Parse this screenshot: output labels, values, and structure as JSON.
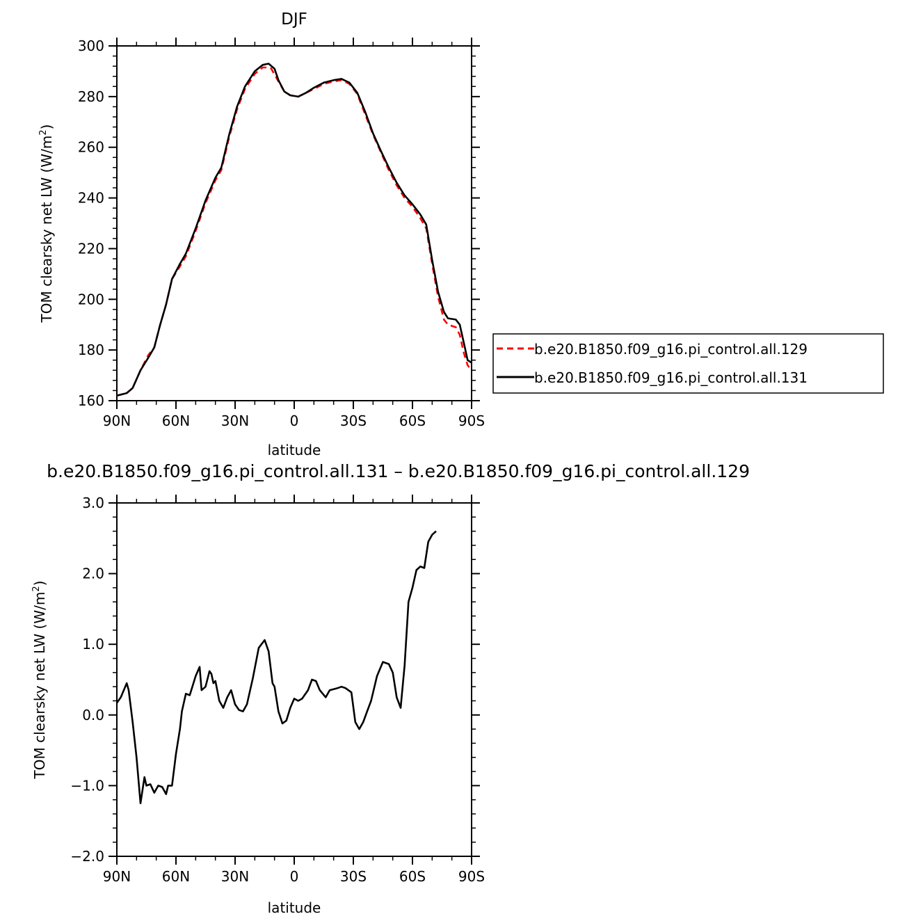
{
  "chart_data": [
    {
      "type": "line",
      "title": "DJF",
      "xlabel": "latitude",
      "ylabel": "TOM clearsky net LW (W/m",
      "ylabel_sup": "2",
      "ylabel_close": ")",
      "xlim": [
        90,
        -90
      ],
      "ylim": [
        160,
        300
      ],
      "x_ticks": [
        90,
        60,
        30,
        0,
        -30,
        -60,
        -90
      ],
      "x_tick_labels": [
        "90N",
        "60N",
        "30N",
        "0",
        "30S",
        "60S",
        "90S"
      ],
      "y_ticks": [
        160,
        180,
        200,
        220,
        240,
        260,
        280,
        300
      ],
      "y_tick_labels": [
        "160",
        "180",
        "200",
        "220",
        "240",
        "260",
        "280",
        "300"
      ],
      "legend": "right",
      "series": [
        {
          "name": "b.e20.B1850.f09_g16.pi_control.all.129",
          "color": "#ff0000",
          "dash": "dashed",
          "points": [
            [
              90,
              162
            ],
            [
              85,
              163
            ],
            [
              82,
              165
            ],
            [
              78,
              172
            ],
            [
              74,
              178
            ],
            [
              71,
              181
            ],
            [
              68,
              190
            ],
            [
              65,
              198
            ],
            [
              62,
              208
            ],
            [
              58,
              213
            ],
            [
              55,
              217
            ],
            [
              50,
              227
            ],
            [
              45,
              238
            ],
            [
              40,
              247
            ],
            [
              37,
              251
            ],
            [
              33,
              264
            ],
            [
              29,
              275
            ],
            [
              25,
              283
            ],
            [
              20,
              289
            ],
            [
              16,
              291.5
            ],
            [
              12,
              291.5
            ],
            [
              8,
              286
            ],
            [
              5,
              282
            ],
            [
              2,
              280.5
            ],
            [
              -2,
              280
            ],
            [
              -6,
              281.5
            ],
            [
              -10,
              283
            ],
            [
              -15,
              285
            ],
            [
              -20,
              286
            ],
            [
              -24,
              286.5
            ],
            [
              -28,
              285
            ],
            [
              -32,
              281
            ],
            [
              -36,
              273
            ],
            [
              -40,
              265
            ],
            [
              -44,
              258
            ],
            [
              -48,
              251
            ],
            [
              -52,
              245
            ],
            [
              -56,
              240
            ],
            [
              -60,
              236.5
            ],
            [
              -64,
              232
            ],
            [
              -67,
              228
            ],
            [
              -70,
              214
            ],
            [
              -73,
              201
            ],
            [
              -76,
              192
            ],
            [
              -78,
              190
            ],
            [
              -82,
              189
            ],
            [
              -84,
              186
            ],
            [
              -86,
              179
            ],
            [
              -88,
              174
            ],
            [
              -90,
              172
            ]
          ]
        },
        {
          "name": "b.e20.B1850.f09_g16.pi_control.all.131",
          "color": "#000000",
          "dash": "solid",
          "points": [
            [
              90,
              162
            ],
            [
              85,
              163
            ],
            [
              82,
              165
            ],
            [
              78,
              172
            ],
            [
              74,
              177
            ],
            [
              71,
              181
            ],
            [
              68,
              190
            ],
            [
              65,
              198
            ],
            [
              62,
              208
            ],
            [
              58,
              214
            ],
            [
              55,
              218
            ],
            [
              50,
              228
            ],
            [
              45,
              239
            ],
            [
              40,
              248
            ],
            [
              37,
              252
            ],
            [
              33,
              265
            ],
            [
              29,
              276
            ],
            [
              25,
              284
            ],
            [
              20,
              290
            ],
            [
              16,
              292.5
            ],
            [
              13,
              293
            ],
            [
              10,
              291
            ],
            [
              8,
              286.5
            ],
            [
              5,
              282
            ],
            [
              2,
              280.5
            ],
            [
              -2,
              280
            ],
            [
              -6,
              281.5
            ],
            [
              -10,
              283.5
            ],
            [
              -15,
              285.5
            ],
            [
              -20,
              286.5
            ],
            [
              -24,
              287
            ],
            [
              -28,
              285.5
            ],
            [
              -32,
              281.5
            ],
            [
              -36,
              274
            ],
            [
              -40,
              265.5
            ],
            [
              -44,
              258.5
            ],
            [
              -48,
              252
            ],
            [
              -52,
              246
            ],
            [
              -56,
              241
            ],
            [
              -60,
              237.5
            ],
            [
              -64,
              233.5
            ],
            [
              -67,
              229.5
            ],
            [
              -70,
              215.5
            ],
            [
              -73,
              203
            ],
            [
              -76,
              195
            ],
            [
              -78,
              192.5
            ],
            [
              -82,
              192
            ],
            [
              -84,
              190
            ],
            [
              -86,
              183
            ],
            [
              -88,
              176
            ],
            [
              -90,
              175
            ]
          ]
        }
      ]
    },
    {
      "type": "line",
      "title": "b.e20.B1850.f09_g16.pi_control.all.131 – b.e20.B1850.f09_g16.pi_control.all.129",
      "xlabel": "latitude",
      "ylabel": "TOM clearsky net LW (W/m",
      "ylabel_sup": "2",
      "ylabel_close": ")",
      "xlim": [
        90,
        -90
      ],
      "ylim": [
        -2.0,
        3.0
      ],
      "x_ticks": [
        90,
        60,
        30,
        0,
        -30,
        -60,
        -90
      ],
      "x_tick_labels": [
        "90N",
        "60N",
        "30N",
        "0",
        "30S",
        "60S",
        "90S"
      ],
      "y_ticks": [
        -2.0,
        -1.0,
        0.0,
        1.0,
        2.0,
        3.0
      ],
      "y_tick_labels": [
        "−2.0",
        "−1.0",
        "0.0",
        "1.0",
        "2.0",
        "3.0"
      ],
      "series": [
        {
          "color": "#000000",
          "dash": "solid",
          "points": [
            [
              90,
              0.17
            ],
            [
              88,
              0.25
            ],
            [
              85,
              0.45
            ],
            [
              84,
              0.35
            ],
            [
              82,
              -0.1
            ],
            [
              80,
              -0.6
            ],
            [
              78,
              -1.25
            ],
            [
              76,
              -0.88
            ],
            [
              75,
              -1.0
            ],
            [
              73,
              -0.98
            ],
            [
              71,
              -1.1
            ],
            [
              69,
              -1.0
            ],
            [
              67,
              -1.02
            ],
            [
              65,
              -1.12
            ],
            [
              64,
              -1.0
            ],
            [
              62,
              -1.0
            ],
            [
              60,
              -0.55
            ],
            [
              58,
              -0.2
            ],
            [
              57,
              0.05
            ],
            [
              55,
              0.3
            ],
            [
              53,
              0.28
            ],
            [
              50,
              0.55
            ],
            [
              48,
              0.68
            ],
            [
              47,
              0.35
            ],
            [
              45,
              0.4
            ],
            [
              43,
              0.62
            ],
            [
              42,
              0.58
            ],
            [
              41,
              0.45
            ],
            [
              40,
              0.48
            ],
            [
              38,
              0.2
            ],
            [
              36,
              0.1
            ],
            [
              34,
              0.25
            ],
            [
              32,
              0.35
            ],
            [
              30,
              0.15
            ],
            [
              28,
              0.07
            ],
            [
              26,
              0.05
            ],
            [
              24,
              0.15
            ],
            [
              21,
              0.52
            ],
            [
              18,
              0.95
            ],
            [
              15,
              1.06
            ],
            [
              13,
              0.9
            ],
            [
              11,
              0.45
            ],
            [
              10,
              0.4
            ],
            [
              8,
              0.05
            ],
            [
              6,
              -0.12
            ],
            [
              4,
              -0.08
            ],
            [
              2,
              0.1
            ],
            [
              0,
              0.23
            ],
            [
              -2,
              0.2
            ],
            [
              -4,
              0.23
            ],
            [
              -7,
              0.35
            ],
            [
              -9,
              0.5
            ],
            [
              -11,
              0.48
            ],
            [
              -13,
              0.35
            ],
            [
              -16,
              0.25
            ],
            [
              -18,
              0.35
            ],
            [
              -22,
              0.38
            ],
            [
              -24,
              0.4
            ],
            [
              -26,
              0.38
            ],
            [
              -29,
              0.32
            ],
            [
              -31,
              -0.1
            ],
            [
              -33,
              -0.2
            ],
            [
              -35,
              -0.1
            ],
            [
              -37,
              0.05
            ],
            [
              -39,
              0.2
            ],
            [
              -42,
              0.55
            ],
            [
              -45,
              0.75
            ],
            [
              -48,
              0.72
            ],
            [
              -50,
              0.6
            ],
            [
              -52,
              0.25
            ],
            [
              -54,
              0.1
            ],
            [
              -56,
              0.7
            ],
            [
              -58,
              1.6
            ],
            [
              -60,
              1.8
            ],
            [
              -62,
              2.05
            ],
            [
              -64,
              2.1
            ],
            [
              -66,
              2.08
            ],
            [
              -68,
              2.45
            ],
            [
              -70,
              2.55
            ],
            [
              -72,
              2.6
            ]
          ]
        }
      ]
    }
  ]
}
